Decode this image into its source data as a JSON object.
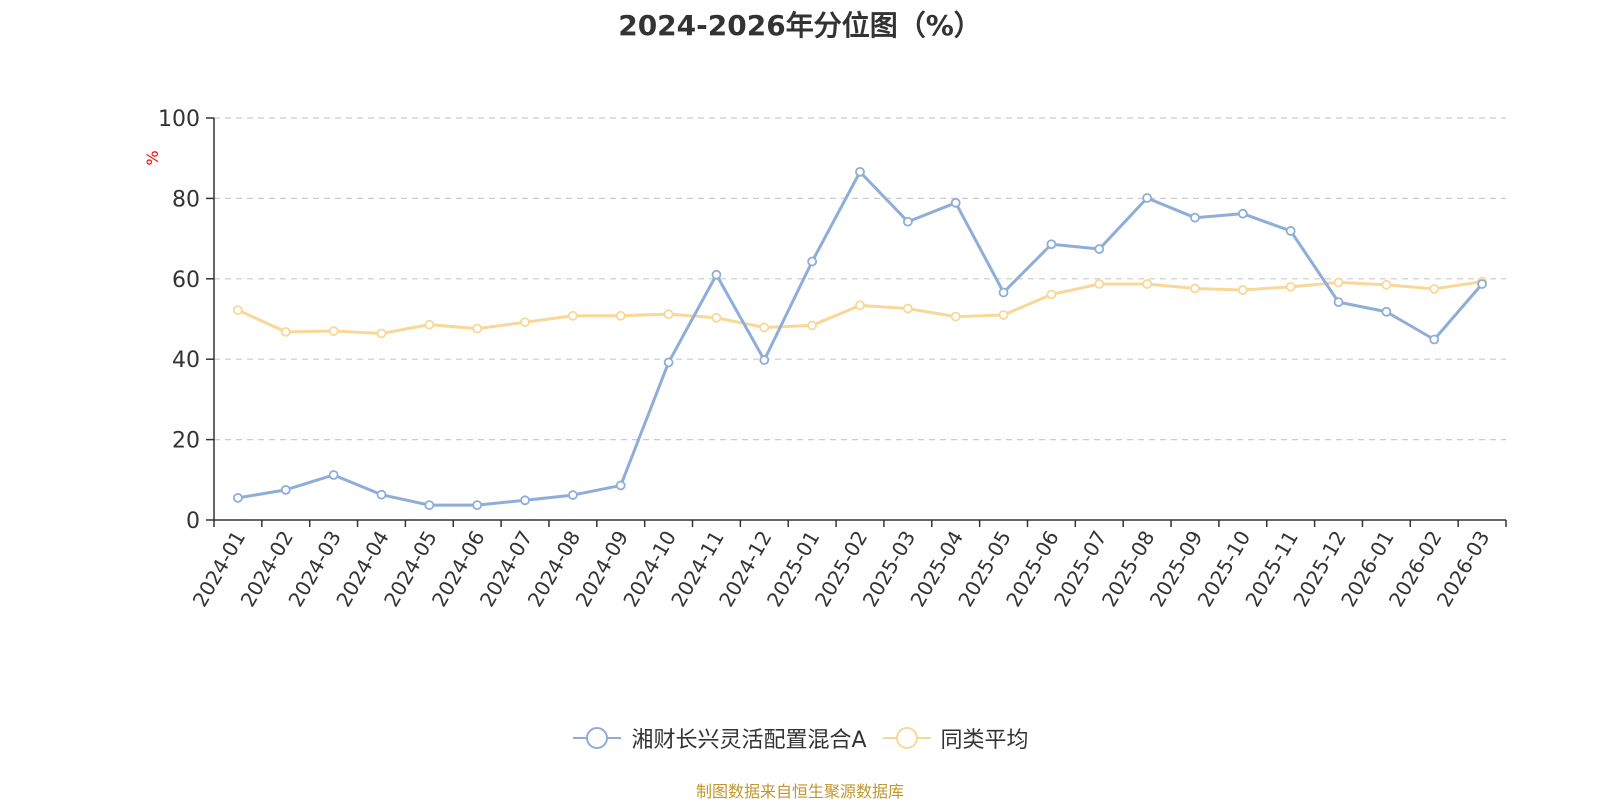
{
  "title": "2024-2026年分位图（%）",
  "source_note": "制图数据来自恒生聚源数据库",
  "colors": {
    "fund": "#8eadd8",
    "average": "#f8d898",
    "grid": "#cccccc",
    "axis": "#333333",
    "ylabel": "#ff0000",
    "source": "#c0972f"
  },
  "chart_data": {
    "type": "line",
    "title": "2024-2026年分位图（%）",
    "ylabel": "%",
    "xlabel": "",
    "ylim": [
      0,
      100
    ],
    "yticks": [
      0,
      20,
      40,
      60,
      80,
      100
    ],
    "grid": true,
    "legend_position": "bottom-center",
    "categories": [
      "2024-01",
      "2024-02",
      "2024-03",
      "2024-04",
      "2024-05",
      "2024-06",
      "2024-07",
      "2024-08",
      "2024-09",
      "2024-10",
      "2024-11",
      "2024-12",
      "2025-01",
      "2025-02",
      "2025-03",
      "2025-04",
      "2025-05",
      "2025-06",
      "2025-07",
      "2025-08",
      "2025-09",
      "2025-10",
      "2025-11",
      "2025-12",
      "2026-01",
      "2026-02",
      "2026-03"
    ],
    "series": [
      {
        "name": "湘财长兴灵活配置混合A",
        "color": "#8eadd8",
        "values": [
          5.5,
          7.5,
          11.2,
          6.3,
          3.7,
          3.7,
          4.9,
          6.2,
          8.6,
          39.2,
          61.0,
          39.8,
          64.3,
          86.6,
          74.2,
          78.9,
          56.6,
          68.6,
          67.4,
          80.1,
          75.2,
          76.2,
          71.9,
          54.2,
          51.8,
          44.9,
          58.7
        ]
      },
      {
        "name": "同类平均",
        "color": "#f8d898",
        "values": [
          52.2,
          46.8,
          47.0,
          46.4,
          48.6,
          47.6,
          49.2,
          50.8,
          50.8,
          51.2,
          50.3,
          47.9,
          48.4,
          53.4,
          52.6,
          50.6,
          51.0,
          56.1,
          58.7,
          58.7,
          57.6,
          57.2,
          58.0,
          59.1,
          58.5,
          57.5,
          59.3
        ]
      }
    ]
  }
}
